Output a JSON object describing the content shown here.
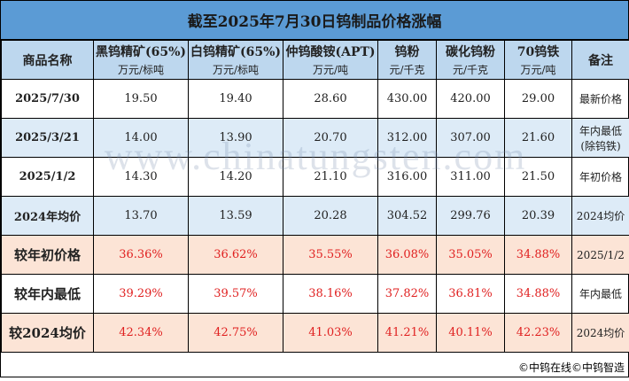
{
  "title": "截至2025年7月30日钨制品价格涨幅",
  "headers": [
    {
      "name": "商品名称",
      "unit": ""
    },
    {
      "name": "黑钨精矿(65%)",
      "unit": "万元/标吨"
    },
    {
      "name": "白钨精矿(65%)",
      "unit": "万元/标吨"
    },
    {
      "name": "仲钨酸铵(APT)",
      "unit": "万元/吨"
    },
    {
      "name": "钨粉",
      "unit": "元/千克"
    },
    {
      "name": "碳化钨粉",
      "unit": "元/千克"
    },
    {
      "name": "70钨铁",
      "unit": "万元/吨"
    },
    {
      "name": "备注",
      "unit": ""
    }
  ],
  "rows": [
    {
      "label": "2025/7/30",
      "values": [
        "19.50",
        "19.40",
        "28.60",
        "430.00",
        "420.00",
        "29.00"
      ],
      "note": "最新价格"
    },
    {
      "label": "2025/3/21",
      "values": [
        "14.00",
        "13.90",
        "20.70",
        "312.00",
        "307.00",
        "21.60"
      ],
      "note": "年内最低\n(除钨铁)"
    },
    {
      "label": "2025/1/2",
      "values": [
        "14.30",
        "14.20",
        "21.10",
        "316.00",
        "311.00",
        "21.50"
      ],
      "note": "年初价格"
    },
    {
      "label": "2024年均价",
      "values": [
        "13.70",
        "13.59",
        "20.28",
        "304.52",
        "299.76",
        "20.39"
      ],
      "note": "2024均价"
    },
    {
      "label": "较年初价格",
      "values": [
        "36.36%",
        "36.62%",
        "35.55%",
        "36.08%",
        "35.05%",
        "34.88%"
      ],
      "note": "2025/1/2"
    },
    {
      "label": "较年内最低",
      "values": [
        "39.29%",
        "39.57%",
        "38.16%",
        "37.82%",
        "36.81%",
        "34.88%"
      ],
      "note": "年内最低"
    },
    {
      "label": "较2024均价",
      "values": [
        "42.34%",
        "42.75%",
        "41.03%",
        "41.21%",
        "40.11%",
        "42.23%"
      ],
      "note": "2024均价"
    }
  ],
  "watermark": "www.chinatungsten.com",
  "footer": "©中钨在线©中钨智造",
  "colors": {
    "title_bg": "#5b9bd5",
    "header_bg": "#bdd7ee",
    "blue_row": "#ddebf7",
    "pink_row": "#fce4d6",
    "pct_text": "#e02020"
  }
}
